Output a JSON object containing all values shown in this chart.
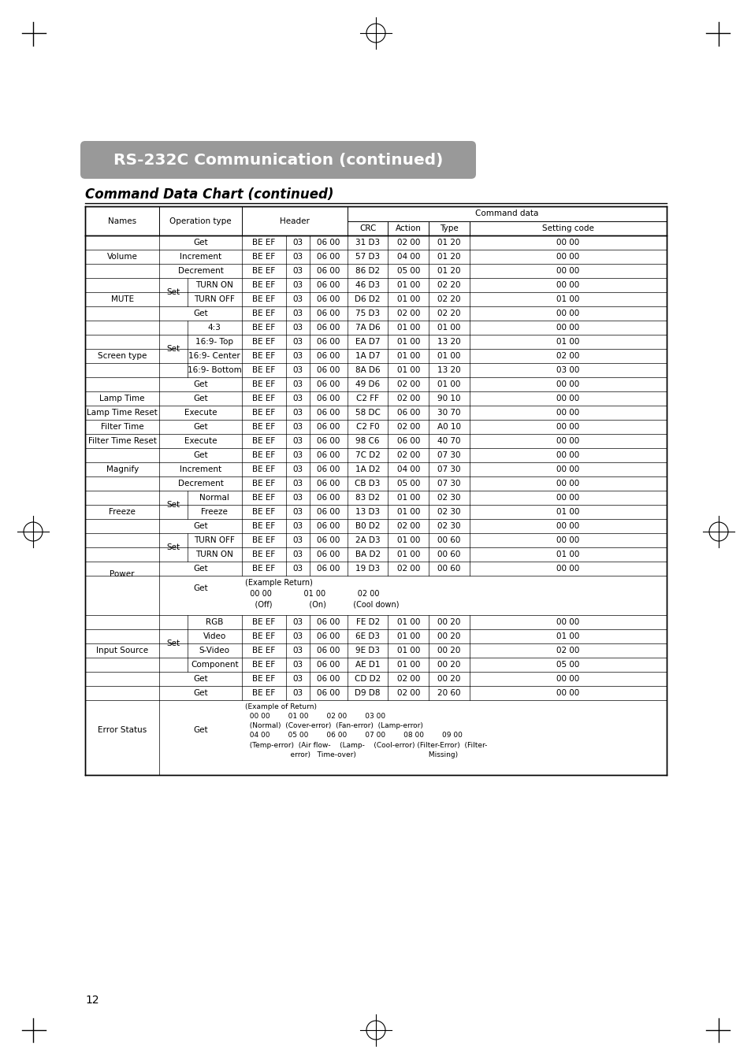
{
  "title": "RS-232C Communication (continued)",
  "subtitle": "Command Data Chart (continued)",
  "page_number": "12",
  "bg_color": "#ffffff",
  "title_bg": "#999999",
  "title_text_color": "#ffffff",
  "rows": [
    [
      "Volume",
      "",
      "Get",
      "BE EF",
      "03",
      "06 00",
      "31 D3",
      "02 00",
      "01 20",
      "00 00"
    ],
    [
      "Volume",
      "",
      "Increment",
      "BE EF",
      "03",
      "06 00",
      "57 D3",
      "04 00",
      "01 20",
      "00 00"
    ],
    [
      "Volume",
      "",
      "Decrement",
      "BE EF",
      "03",
      "06 00",
      "86 D2",
      "05 00",
      "01 20",
      "00 00"
    ],
    [
      "MUTE",
      "Set",
      "TURN ON",
      "BE EF",
      "03",
      "06 00",
      "46 D3",
      "01 00",
      "02 20",
      "00 00"
    ],
    [
      "MUTE",
      "Set",
      "TURN OFF",
      "BE EF",
      "03",
      "06 00",
      "D6 D2",
      "01 00",
      "02 20",
      "01 00"
    ],
    [
      "MUTE",
      "",
      "Get",
      "BE EF",
      "03",
      "06 00",
      "75 D3",
      "02 00",
      "02 20",
      "00 00"
    ],
    [
      "Screen type",
      "Set",
      "4:3",
      "BE EF",
      "03",
      "06 00",
      "7A D6",
      "01 00",
      "01 00",
      "00 00"
    ],
    [
      "Screen type",
      "Set",
      "16:9- Top",
      "BE EF",
      "03",
      "06 00",
      "EA D7",
      "01 00",
      "13 20",
      "01 00"
    ],
    [
      "Screen type",
      "Set",
      "16:9- Center",
      "BE EF",
      "03",
      "06 00",
      "1A D7",
      "01 00",
      "01 00",
      "02 00"
    ],
    [
      "Screen type",
      "Set",
      "16:9- Bottom",
      "BE EF",
      "03",
      "06 00",
      "8A D6",
      "01 00",
      "13 20",
      "03 00"
    ],
    [
      "Screen type",
      "",
      "Get",
      "BE EF",
      "03",
      "06 00",
      "49 D6",
      "02 00",
      "01 00",
      "00 00"
    ],
    [
      "Lamp Time",
      "",
      "Get",
      "BE EF",
      "03",
      "06 00",
      "C2 FF",
      "02 00",
      "90 10",
      "00 00"
    ],
    [
      "Lamp Time Reset",
      "",
      "Execute",
      "BE EF",
      "03",
      "06 00",
      "58 DC",
      "06 00",
      "30 70",
      "00 00"
    ],
    [
      "Filter Time",
      "",
      "Get",
      "BE EF",
      "03",
      "06 00",
      "C2 F0",
      "02 00",
      "A0 10",
      "00 00"
    ],
    [
      "Filter Time Reset",
      "",
      "Execute",
      "BE EF",
      "03",
      "06 00",
      "98 C6",
      "06 00",
      "40 70",
      "00 00"
    ],
    [
      "Magnify",
      "",
      "Get",
      "BE EF",
      "03",
      "06 00",
      "7C D2",
      "02 00",
      "07 30",
      "00 00"
    ],
    [
      "Magnify",
      "",
      "Increment",
      "BE EF",
      "03",
      "06 00",
      "1A D2",
      "04 00",
      "07 30",
      "00 00"
    ],
    [
      "Magnify",
      "",
      "Decrement",
      "BE EF",
      "03",
      "06 00",
      "CB D3",
      "05 00",
      "07 30",
      "00 00"
    ],
    [
      "Freeze",
      "Set",
      "Normal",
      "BE EF",
      "03",
      "06 00",
      "83 D2",
      "01 00",
      "02 30",
      "00 00"
    ],
    [
      "Freeze",
      "Set",
      "Freeze",
      "BE EF",
      "03",
      "06 00",
      "13 D3",
      "01 00",
      "02 30",
      "01 00"
    ],
    [
      "Freeze",
      "",
      "Get",
      "BE EF",
      "03",
      "06 00",
      "B0 D2",
      "02 00",
      "02 30",
      "00 00"
    ],
    [
      "Power",
      "Set",
      "TURN OFF",
      "BE EF",
      "03",
      "06 00",
      "2A D3",
      "01 00",
      "00 60",
      "00 00"
    ],
    [
      "Power",
      "Set",
      "TURN ON",
      "BE EF",
      "03",
      "06 00",
      "BA D2",
      "01 00",
      "00 60",
      "01 00"
    ],
    [
      "Power",
      "Get_data",
      "",
      "BE EF",
      "03",
      "06 00",
      "19 D3",
      "02 00",
      "00 60",
      "00 00"
    ],
    [
      "Power",
      "Get_example",
      "",
      "",
      "",
      "",
      "",
      "",
      "",
      ""
    ],
    [
      "Input Source",
      "Set",
      "RGB",
      "BE EF",
      "03",
      "06 00",
      "FE D2",
      "01 00",
      "00 20",
      "00 00"
    ],
    [
      "Input Source",
      "Set",
      "Video",
      "BE EF",
      "03",
      "06 00",
      "6E D3",
      "01 00",
      "00 20",
      "01 00"
    ],
    [
      "Input Source",
      "Set",
      "S-Video",
      "BE EF",
      "03",
      "06 00",
      "9E D3",
      "01 00",
      "00 20",
      "02 00"
    ],
    [
      "Input Source",
      "Set",
      "Component",
      "BE EF",
      "03",
      "06 00",
      "AE D1",
      "01 00",
      "00 20",
      "05 00"
    ],
    [
      "Input Source",
      "",
      "Get",
      "BE EF",
      "03",
      "06 00",
      "CD D2",
      "02 00",
      "00 20",
      "00 00"
    ],
    [
      "Error Status",
      "Get_data",
      "",
      "BE EF",
      "03",
      "06 00",
      "D9 D8",
      "02 00",
      "20 60",
      "00 00"
    ],
    [
      "Error Status",
      "Get_example",
      "",
      "",
      "",
      "",
      "",
      "",
      "",
      ""
    ]
  ],
  "power_example": "(Example Return)\n  00 00             01 00             02 00\n    (Off)               (On)           (Cool down)",
  "error_example_lines": [
    "(Example of Return)",
    "  00 00        01 00        02 00        03 00",
    "  (Normal)  (Cover-error)  (Fan-error)  (Lamp-error)",
    "  04 00        05 00        06 00        07 00        08 00        09 00",
    "  (Temp-error)  (Air flow-    (Lamp-    (Cool-error) (Filter-Error)  (Filter-",
    "                    error)   Time-over)                                Missing)"
  ]
}
